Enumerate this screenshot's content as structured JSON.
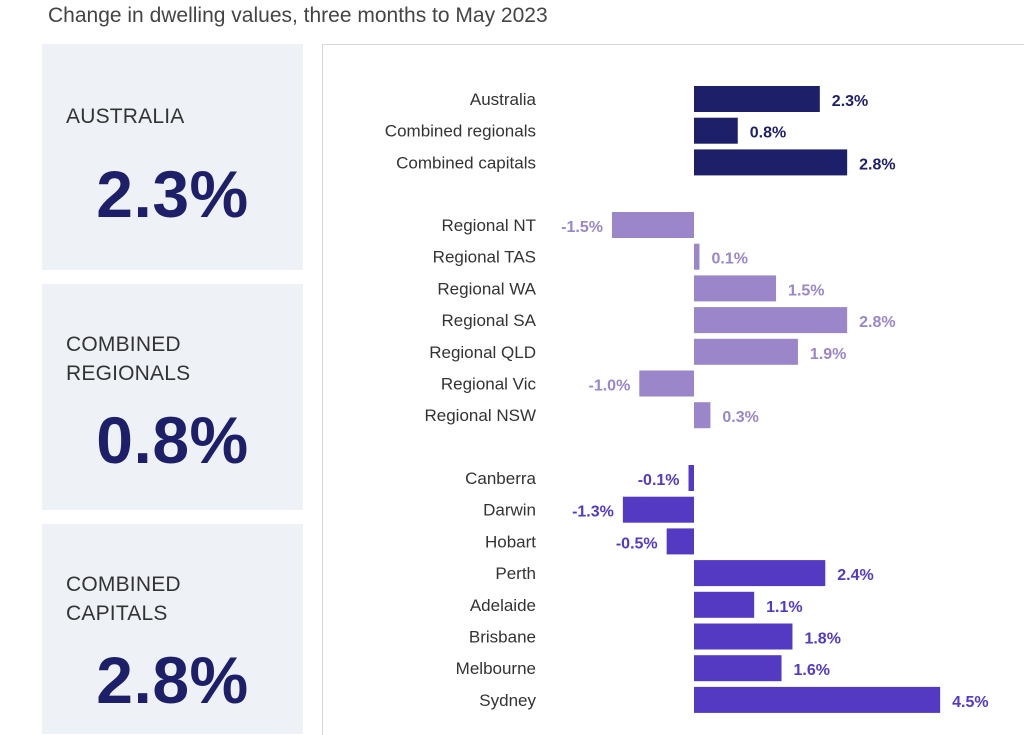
{
  "title": "Change in dwelling values, three months to May 2023",
  "cards": [
    {
      "label": "AUSTRALIA",
      "value": "2.3%"
    },
    {
      "label": "COMBINED\nREGIONALS",
      "value": "0.8%"
    },
    {
      "label": "COMBINED\nCAPITALS",
      "value": "2.8%"
    }
  ],
  "colors": {
    "national": "#1d1f69",
    "regional": "#9a86c9",
    "capital": "#5439c2",
    "card_bg": "#eef2f6"
  },
  "chart_data": {
    "type": "bar",
    "orientation": "horizontal",
    "title": "Change in dwelling values, three months to May 2023",
    "unit": "%",
    "groups": [
      {
        "name": "national",
        "color": "#1d1f69",
        "categories": [
          "Australia",
          "Combined regionals",
          "Combined capitals"
        ],
        "values": [
          2.3,
          0.8,
          2.8
        ],
        "labels": [
          "2.3%",
          "0.8%",
          "2.8%"
        ]
      },
      {
        "name": "regional",
        "color": "#9a86c9",
        "categories": [
          "Regional NT",
          "Regional TAS",
          "Regional WA",
          "Regional SA",
          "Regional QLD",
          "Regional Vic",
          "Regional NSW"
        ],
        "values": [
          -1.5,
          0.1,
          1.5,
          2.8,
          1.9,
          -1.0,
          0.3
        ],
        "labels": [
          "-1.5%",
          "0.1%",
          "1.5%",
          "2.8%",
          "1.9%",
          "-1.0%",
          "0.3%"
        ]
      },
      {
        "name": "capitals",
        "color": "#5439c2",
        "categories": [
          "Canberra",
          "Darwin",
          "Hobart",
          "Perth",
          "Adelaide",
          "Brisbane",
          "Melbourne",
          "Sydney"
        ],
        "values": [
          -0.1,
          -1.3,
          -0.5,
          2.4,
          1.1,
          1.8,
          1.6,
          4.5
        ],
        "labels": [
          "-0.1%",
          "-1.3%",
          "-0.5%",
          "2.4%",
          "1.1%",
          "1.8%",
          "1.6%",
          "4.5%"
        ]
      }
    ]
  }
}
